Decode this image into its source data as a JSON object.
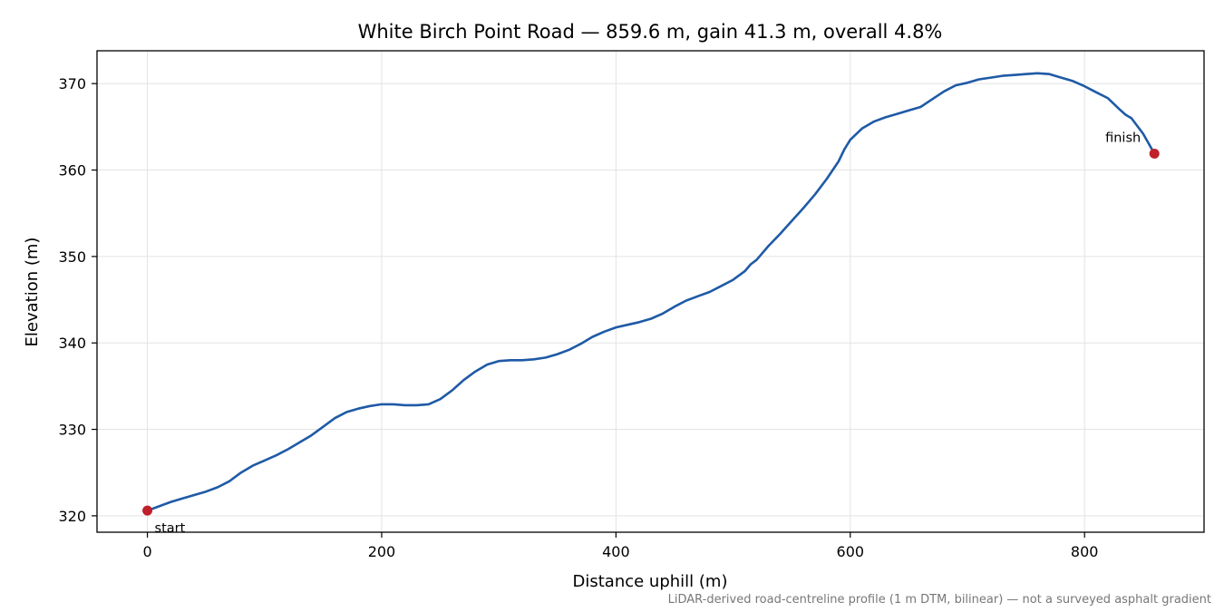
{
  "chart_data": {
    "type": "line",
    "title": "White Birch Point Road — 859.6 m, gain 41.3 m, overall 4.8%",
    "xlabel": "Distance uphill (m)",
    "ylabel": "Elevation (m)",
    "footnote": "LiDAR-derived road-centreline profile (1 m DTM, bilinear) — not a surveyed asphalt gradient",
    "xlim": [
      -43,
      902
    ],
    "ylim": [
      318.1,
      373.8
    ],
    "xticks": [
      0,
      200,
      400,
      600,
      800
    ],
    "yticks": [
      320,
      330,
      340,
      350,
      360,
      370
    ],
    "grid": true,
    "line_color": "#1f5aa6",
    "marker_color": "#c0202a",
    "series": [
      {
        "x": [
          0,
          10,
          20,
          30,
          40,
          50,
          60,
          70,
          80,
          90,
          100,
          110,
          120,
          130,
          140,
          150,
          160,
          170,
          180,
          190,
          200,
          210,
          220,
          230,
          240,
          250,
          260,
          270,
          280,
          290,
          300,
          310,
          320,
          330,
          340,
          350,
          360,
          370,
          380,
          390,
          400,
          410,
          420,
          430,
          440,
          450,
          460,
          470,
          480,
          490,
          500,
          510,
          515,
          520,
          530,
          540,
          550,
          560,
          570,
          580,
          585,
          590,
          595,
          600,
          610,
          620,
          630,
          640,
          650,
          660,
          670,
          680,
          690,
          700,
          710,
          720,
          730,
          740,
          750,
          760,
          770,
          780,
          790,
          800,
          810,
          820,
          830,
          835,
          840,
          850,
          859.6
        ],
        "y": [
          320.6,
          321.1,
          321.6,
          322.0,
          322.4,
          322.8,
          323.3,
          324.0,
          325.0,
          325.8,
          326.4,
          327.0,
          327.7,
          328.5,
          329.3,
          330.3,
          331.3,
          332.0,
          332.4,
          332.7,
          332.9,
          332.9,
          332.8,
          332.8,
          332.9,
          333.5,
          334.5,
          335.7,
          336.7,
          337.5,
          337.9,
          338.0,
          338.0,
          338.1,
          338.3,
          338.7,
          339.2,
          339.9,
          340.7,
          341.3,
          341.8,
          342.1,
          342.4,
          342.8,
          343.4,
          344.2,
          344.9,
          345.4,
          345.9,
          346.6,
          347.3,
          348.3,
          349.1,
          349.6,
          351.2,
          352.6,
          354.1,
          355.6,
          357.2,
          359.0,
          360.0,
          361.0,
          362.4,
          363.5,
          364.8,
          365.6,
          366.1,
          366.5,
          366.9,
          367.3,
          368.2,
          369.1,
          369.8,
          370.1,
          370.5,
          370.7,
          370.9,
          371.0,
          371.1,
          371.2,
          371.1,
          370.7,
          370.3,
          369.7,
          369.0,
          368.3,
          367.0,
          366.4,
          366.0,
          364.2,
          361.9
        ]
      }
    ],
    "annotations": [
      {
        "text": "start",
        "x": 0,
        "y": 320.6
      },
      {
        "text": "finish",
        "x": 859.6,
        "y": 361.9
      }
    ]
  }
}
